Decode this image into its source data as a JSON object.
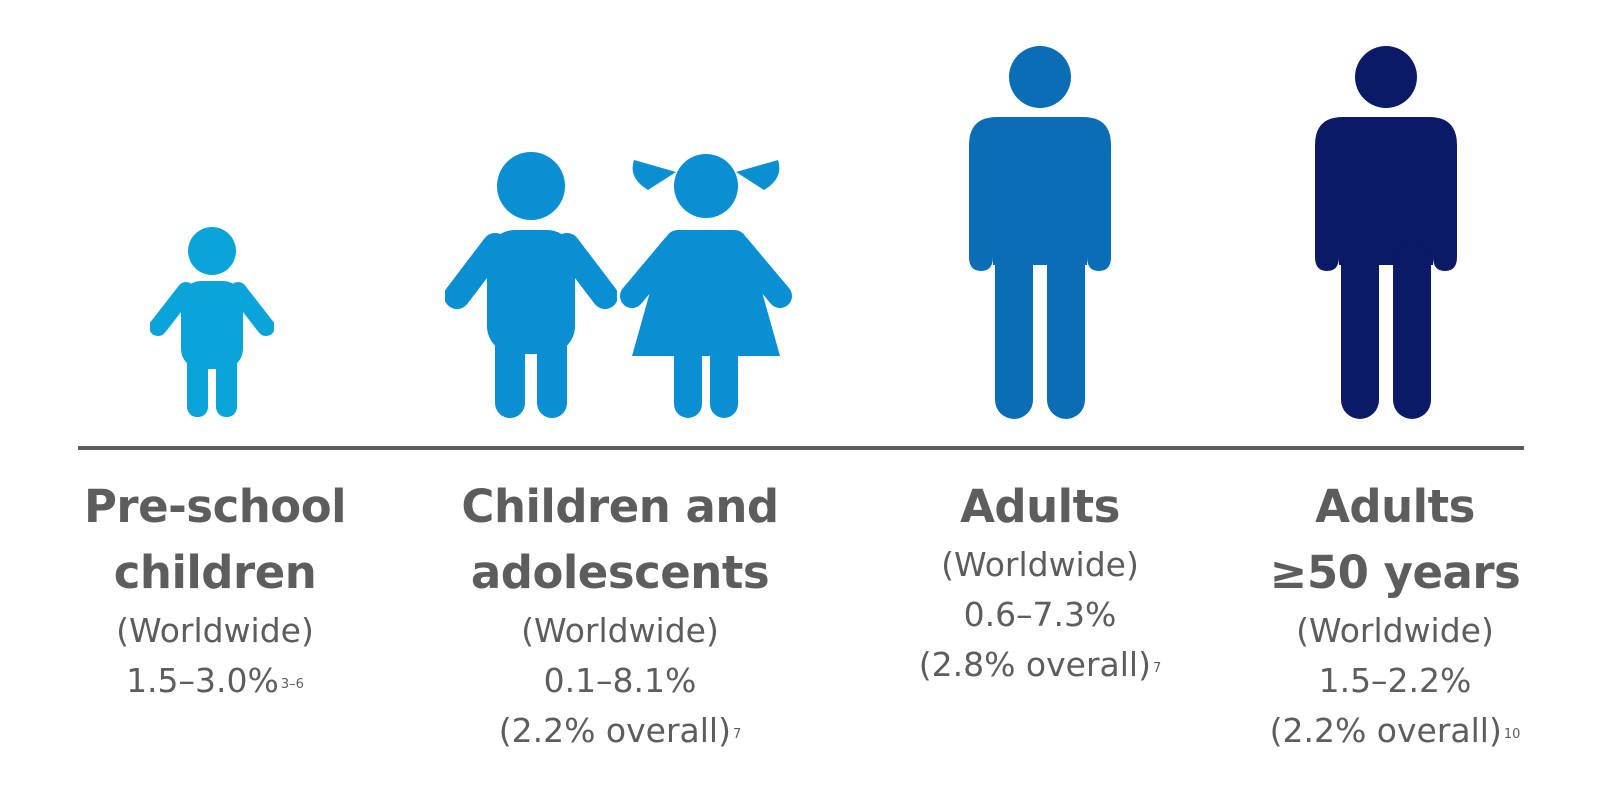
{
  "groups": [
    {
      "title_lines": [
        "Pre-school",
        "children"
      ],
      "region": "(Worldwide)",
      "range": "1.5–3.0%",
      "range_ref": "3–6",
      "overall": "",
      "overall_ref": "",
      "color": "#0aa4d9",
      "icon": "child-icon"
    },
    {
      "title_lines": [
        "Children and",
        "adolescents"
      ],
      "region": "(Worldwide)",
      "range": "0.1–8.1%",
      "range_ref": "",
      "overall": "(2.2% overall)",
      "overall_ref": "7",
      "color": "#0a8fd2",
      "icon": "boy-girl-icon"
    },
    {
      "title_lines": [
        "Adults"
      ],
      "region": "(Worldwide)",
      "range": "0.6–7.3%",
      "range_ref": "",
      "overall": "(2.8% overall)",
      "overall_ref": "7",
      "color": "#0a6db5",
      "icon": "adult-icon"
    },
    {
      "title_lines": [
        "Adults",
        "≥50 years"
      ],
      "region": "(Worldwide)",
      "range": "1.5–2.2%",
      "range_ref": "",
      "overall": "(2.2% overall)",
      "overall_ref": "10",
      "color": "#0a1a66",
      "icon": "adult-icon"
    }
  ]
}
